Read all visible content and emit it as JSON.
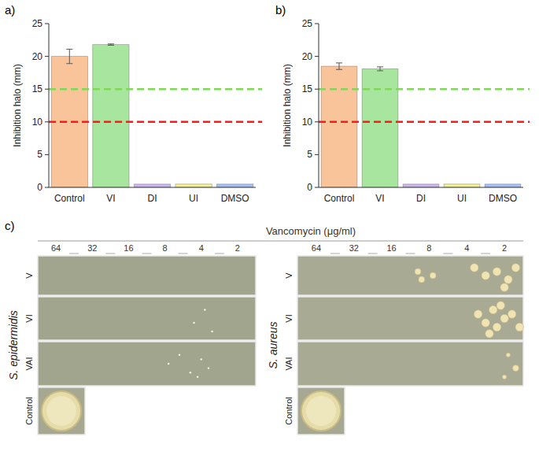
{
  "chart_data": [
    {
      "type": "bar",
      "title": "a)",
      "y_label": "Inhibition halo (mm)",
      "categories": [
        "Control",
        "VI",
        "DI",
        "UI",
        "DMSO"
      ],
      "values": [
        20.0,
        21.8,
        0.5,
        0.5,
        0.5
      ],
      "errors": [
        1.1,
        0.1,
        null,
        null,
        null
      ],
      "colors": [
        "#f9c49a",
        "#a8e6a0",
        "#cbb8ec",
        "#f4f09a",
        "#a9c0f2"
      ],
      "reference_lines": [
        {
          "value": 15,
          "color": "#7ed957"
        },
        {
          "value": 10,
          "color": "#ff1a1a"
        }
      ],
      "ylim": [
        0,
        25
      ],
      "yticks": [
        0,
        5,
        10,
        15,
        20,
        25
      ],
      "grid": false
    },
    {
      "type": "bar",
      "title": "b)",
      "y_label": "Inhibition halo (mm)",
      "categories": [
        "Control",
        "VI",
        "DI",
        "UI",
        "DMSO"
      ],
      "values": [
        18.5,
        18.1,
        0.5,
        0.5,
        0.5
      ],
      "errors": [
        0.5,
        0.3,
        null,
        null,
        null
      ],
      "colors": [
        "#f9c49a",
        "#a8e6a0",
        "#cbb8ec",
        "#f4f09a",
        "#a9c0f2"
      ],
      "reference_lines": [
        {
          "value": 15,
          "color": "#7ed957"
        },
        {
          "value": 10,
          "color": "#ff1a1a"
        }
      ],
      "ylim": [
        0,
        25
      ],
      "yticks": [
        0,
        5,
        10,
        15,
        20,
        25
      ],
      "grid": false
    }
  ],
  "panel_c": {
    "label": "c)",
    "title": "Vancomycin (μg/ml)",
    "concentrations": [
      64,
      32,
      16,
      8,
      4,
      2
    ],
    "rows": [
      "V",
      "VI",
      "VAI",
      "Control"
    ],
    "organisms": [
      "S. epidermidis",
      "S. aureus"
    ]
  }
}
